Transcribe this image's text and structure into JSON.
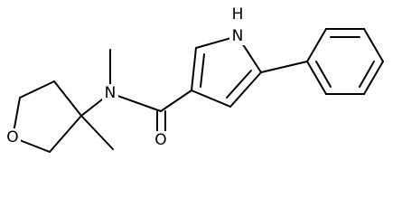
{
  "molecule": {
    "atoms": [
      {
        "label": "N"
      },
      {
        "label": "H"
      },
      {
        "label": "N"
      },
      {
        "label": "O"
      },
      {
        "label": "O"
      }
    ]
  }
}
